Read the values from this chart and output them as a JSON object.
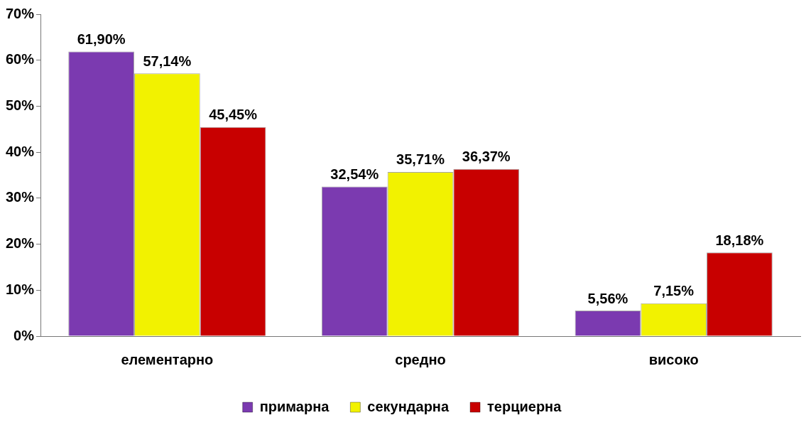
{
  "chart_data": {
    "type": "bar",
    "categories": [
      "елементарно",
      "средно",
      "високо"
    ],
    "series": [
      {
        "name": "примарна",
        "color": "#7b3ab0",
        "values": [
          61.9,
          32.54,
          5.56
        ],
        "value_labels": [
          "61,90%",
          "32,54%",
          "5,56%"
        ]
      },
      {
        "name": "секундарна",
        "color": "#f2f200",
        "values": [
          57.14,
          35.71,
          7.15
        ],
        "value_labels": [
          "57,14%",
          "35,71%",
          "7,15%"
        ]
      },
      {
        "name": "терциерна",
        "color": "#c80000",
        "values": [
          45.45,
          36.37,
          18.18
        ],
        "value_labels": [
          "45,45%",
          "36,37%",
          "18,18%"
        ]
      }
    ],
    "ylim": [
      0,
      70
    ],
    "yticks": [
      {
        "value": 0,
        "label": "0%"
      },
      {
        "value": 10,
        "label": "10%"
      },
      {
        "value": 20,
        "label": "20%"
      },
      {
        "value": 30,
        "label": "30%"
      },
      {
        "value": 40,
        "label": "40%"
      },
      {
        "value": 50,
        "label": "50%"
      },
      {
        "value": 60,
        "label": "60%"
      },
      {
        "value": 70,
        "label": "70%"
      }
    ],
    "grid": false,
    "legend": "bottom"
  }
}
